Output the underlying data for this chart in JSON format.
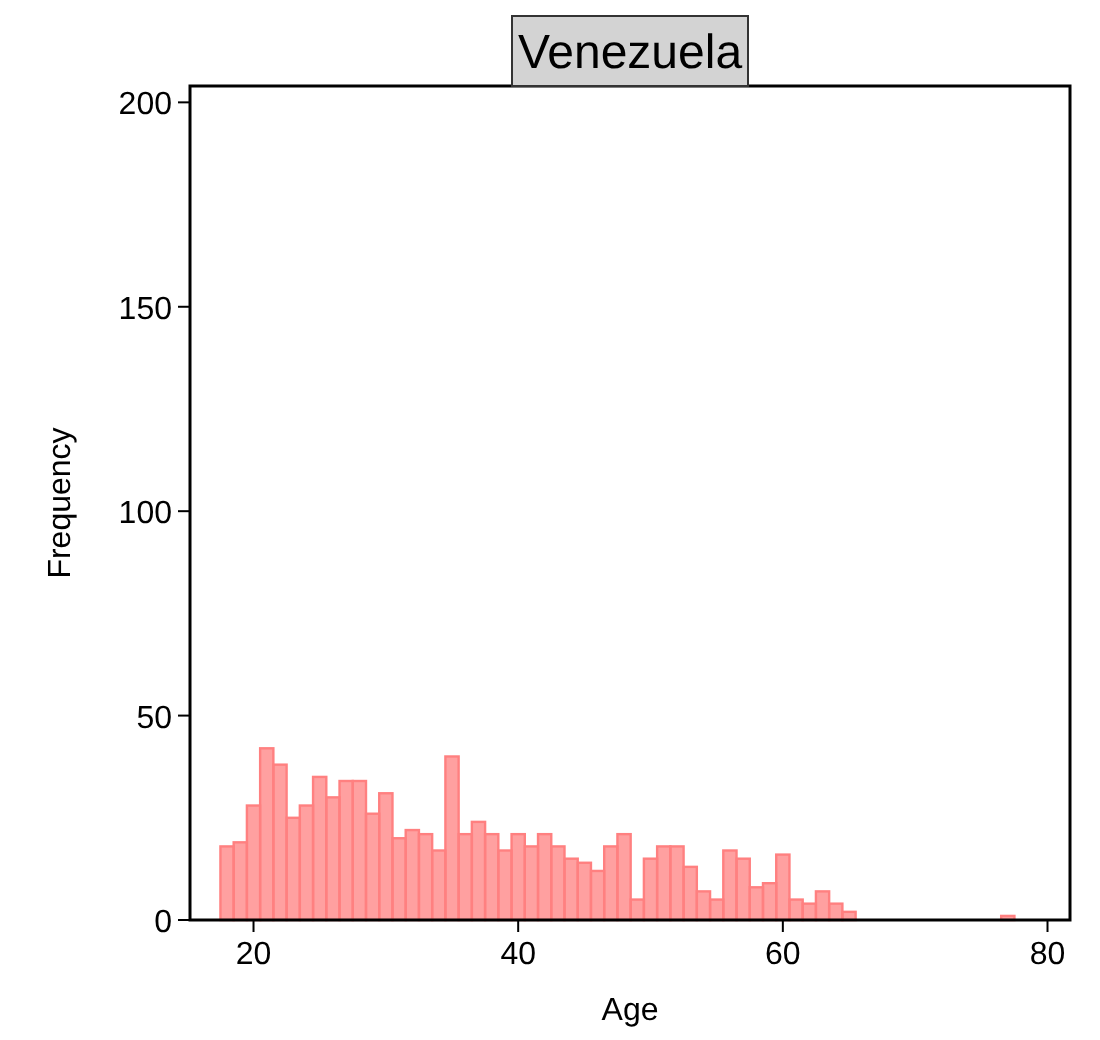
{
  "chart_data": {
    "type": "histogram",
    "title": "Venezuela",
    "xlabel": "Age",
    "ylabel": "Frequency",
    "bins": [
      17.5,
      18.5,
      19.5,
      20.5,
      21.5,
      22.5,
      23.5,
      24.5,
      25.5,
      26.5,
      27.5,
      28.5,
      29.5,
      30.5,
      31.5,
      32.5,
      33.5,
      34.5,
      35.5,
      36.5,
      37.5,
      38.5,
      39.5,
      40.5,
      41.5,
      42.5,
      43.5,
      44.5,
      45.5,
      46.5,
      47.5,
      48.5,
      49.5,
      50.5,
      51.5,
      52.5,
      53.5,
      54.5,
      55.5,
      56.5,
      57.5,
      58.5,
      59.5,
      60.5,
      61.5,
      62.5,
      63.5,
      64.5,
      65.5,
      66.5,
      67.5,
      68.5,
      69.5,
      70.5,
      71.5,
      72.5,
      73.5,
      74.5,
      75.5,
      76.5,
      77.5
    ],
    "values": [
      18,
      19,
      28,
      42,
      38,
      25,
      28,
      35,
      30,
      34,
      34,
      26,
      31,
      20,
      22,
      21,
      17,
      40,
      21,
      24,
      21,
      17,
      21,
      18,
      21,
      18,
      15,
      14,
      12,
      18,
      21,
      5,
      15,
      18,
      18,
      13,
      7,
      5,
      17,
      15,
      8,
      9,
      16,
      5,
      4,
      7,
      4,
      2,
      0,
      0,
      0,
      0,
      0,
      0,
      0,
      0,
      0,
      0,
      0,
      1
    ],
    "color": "#ff8080",
    "xlim": [
      15.2,
      81.7
    ],
    "ylim": [
      0,
      204
    ],
    "xticks": [
      20,
      40,
      60,
      80
    ],
    "yticks": [
      0,
      50,
      100,
      150,
      200
    ],
    "grid": false
  }
}
